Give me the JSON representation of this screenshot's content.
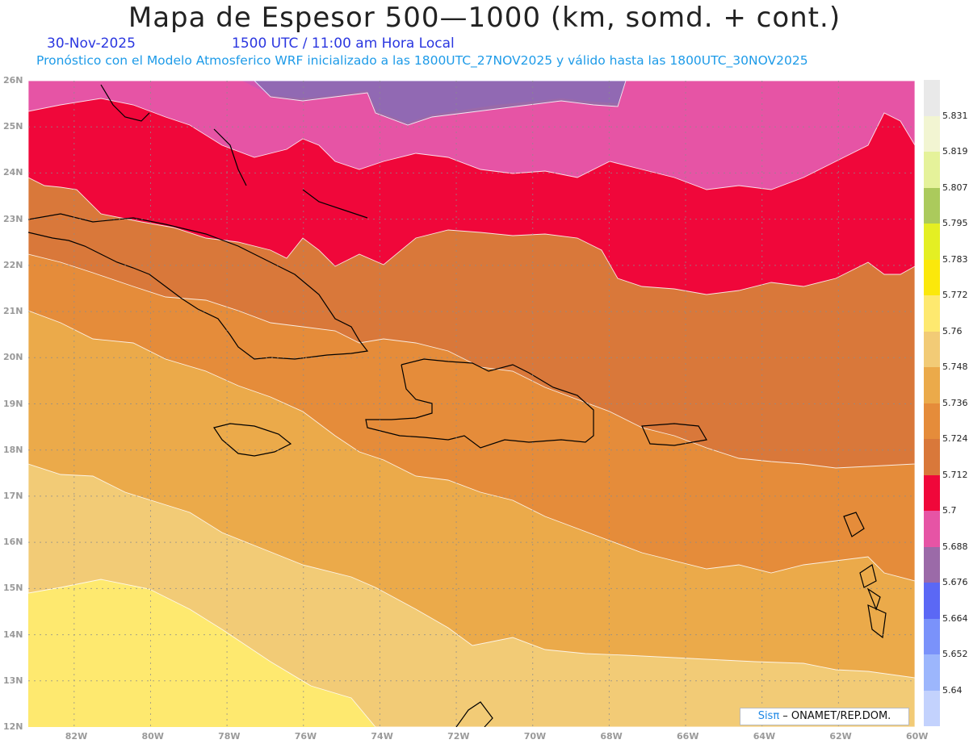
{
  "header": {
    "title": "Mapa de Espesor 500—1000 (km, somd. + cont.)",
    "date": "30-Nov-2025",
    "time": "1500 UTC / 11:00 am Hora Local",
    "description": "Pronóstico con el Modelo Atmosferico WRF inicializado a las 1800UTC_27NOV2025 y válido hasta las  1800UTC_30NOV2025"
  },
  "map": {
    "lat_labels": [
      "26N",
      "25N",
      "24N",
      "23N",
      "22N",
      "21N",
      "20N",
      "19N",
      "18N",
      "17N",
      "16N",
      "15N",
      "14N",
      "13N",
      "12N"
    ],
    "lon_labels": [
      "82W",
      "80W",
      "78W",
      "76W",
      "74W",
      "72W",
      "70W",
      "68W",
      "66W",
      "64W",
      "62W",
      "60W"
    ],
    "lat_range": [
      12,
      26
    ],
    "lon_range": [
      -83.2,
      -60
    ],
    "band_colors": [
      "#fee96f",
      "#f2cb76",
      "#ebaa4a",
      "#e58c3a",
      "#d9783a",
      "#f0073a",
      "#e654a5",
      "#9b6aa8",
      "#5b68f5"
    ]
  },
  "colorbar": {
    "labels": [
      "5.831",
      "5.819",
      "5.807",
      "5.795",
      "5.783",
      "5.772",
      "5.76",
      "5.748",
      "5.736",
      "5.724",
      "5.712",
      "5.7",
      "5.688",
      "5.676",
      "5.664",
      "5.652",
      "5.64"
    ],
    "colors": [
      "#e9e9e9",
      "#f2f5d2",
      "#e5f29a",
      "#abca5c",
      "#e4ef23",
      "#fbe80b",
      "#fee96f",
      "#f2cb76",
      "#ebaa4a",
      "#e58c3a",
      "#d9783a",
      "#f0073a",
      "#e654a5",
      "#9b6aa8",
      "#5b68f5",
      "#7a92fa",
      "#9cb6fc",
      "#c3d2fd"
    ]
  },
  "credit": {
    "brand": "Sisπ",
    "org": " – ONAMET/REP.DOM."
  }
}
